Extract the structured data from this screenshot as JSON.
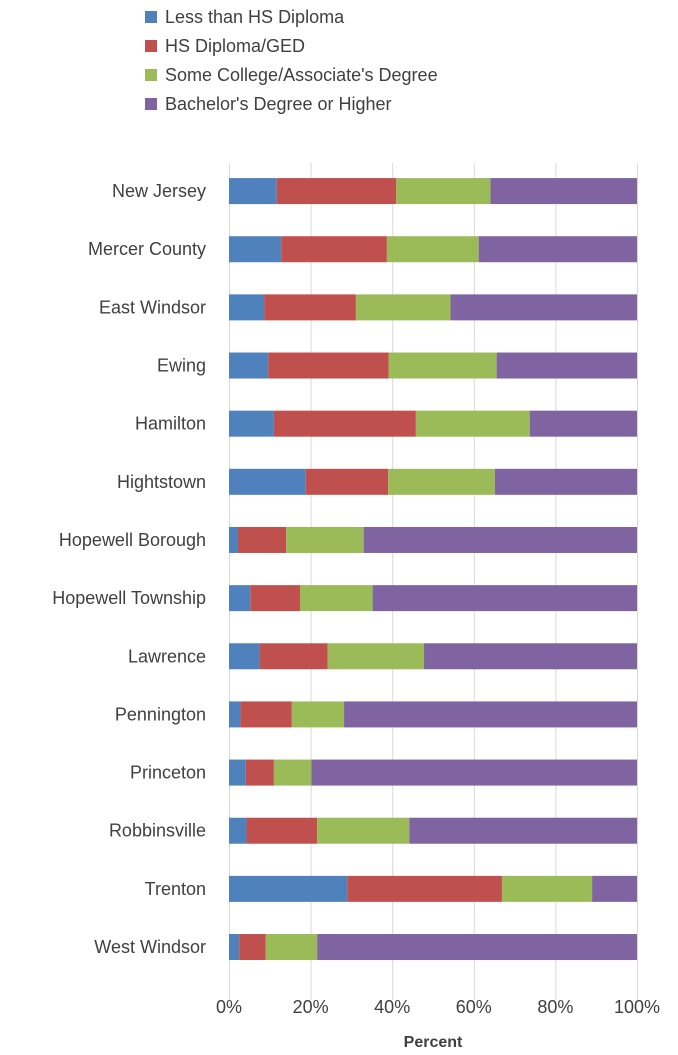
{
  "chart_data": {
    "type": "bar",
    "orientation": "horizontal",
    "stacked": "percent",
    "xlabel": "Percent",
    "xlim": [
      0,
      100
    ],
    "x_ticks": [
      "0%",
      "20%",
      "40%",
      "60%",
      "80%",
      "100%"
    ],
    "grid": true,
    "legend_position": "top",
    "categories": [
      "New Jersey",
      "Mercer County",
      "East Windsor",
      "Ewing",
      "Hamilton",
      "Hightstown",
      "Hopewell Borough",
      "Hopewell Township",
      "Lawrence",
      "Pennington",
      "Princeton",
      "Robbinsville",
      "Trenton",
      "West Windsor"
    ],
    "series": [
      {
        "name": "Less than HS Diploma",
        "color": "#4f81bd",
        "values": [
          11.7,
          12.8,
          8.6,
          9.6,
          11.0,
          18.8,
          2.2,
          5.2,
          7.5,
          2.8,
          4.1,
          4.3,
          29.0,
          2.5
        ]
      },
      {
        "name": "HS Diploma/GED",
        "color": "#c0504d",
        "values": [
          29.3,
          25.9,
          22.5,
          29.5,
          34.8,
          20.2,
          11.8,
          12.2,
          16.7,
          12.6,
          6.9,
          17.3,
          37.9,
          6.5
        ]
      },
      {
        "name": "Some College/Associate's Degree",
        "color": "#9bbb59",
        "values": [
          23.1,
          22.5,
          23.2,
          26.5,
          27.9,
          26.2,
          19.0,
          17.8,
          23.6,
          12.8,
          9.2,
          22.6,
          22.1,
          12.6
        ]
      },
      {
        "name": "Bachelor's Degree or Higher",
        "color": "#8064a2",
        "values": [
          35.9,
          38.8,
          45.7,
          34.4,
          26.3,
          34.8,
          67.0,
          64.8,
          52.2,
          71.8,
          79.8,
          55.8,
          11.0,
          78.4
        ]
      }
    ]
  }
}
